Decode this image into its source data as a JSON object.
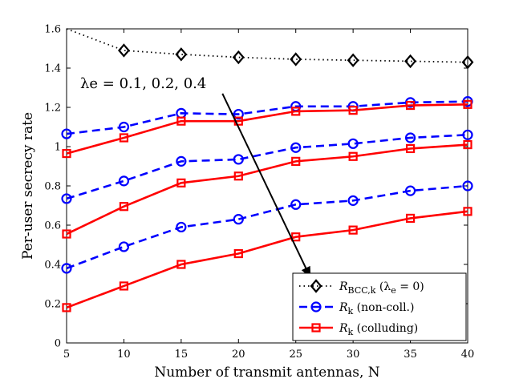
{
  "chart_data": {
    "type": "line",
    "x": [
      5,
      10,
      15,
      20,
      25,
      30,
      35,
      40
    ],
    "xlabel": "Number of transmit antennas, N",
    "ylabel": "Per-user secrecy rate",
    "xlim": [
      5,
      40
    ],
    "ylim": [
      0,
      1.6
    ],
    "x_ticks": [
      5,
      10,
      15,
      20,
      25,
      30,
      35,
      40
    ],
    "y_ticks": [
      0,
      0.2,
      0.4,
      0.6,
      0.8,
      1,
      1.2,
      1.4,
      1.6
    ],
    "y_tick_labels": [
      "0",
      "0.2",
      "0.4",
      "0.6",
      "0.8",
      "1",
      "1.2",
      "1.4",
      "1.6"
    ],
    "grid": false,
    "legend_position": "bottom-right",
    "annotation": {
      "text": "λe = 0.1, 0.2, 0.4",
      "arrow_from": [
        18.6,
        1.27
      ],
      "arrow_to": [
        26.3,
        0.33
      ]
    },
    "series": [
      {
        "name": "R_BCC,k (λe = 0)",
        "legend": "RBCC,k (λe = 0)",
        "style": "dotted",
        "marker": "diamond",
        "color": "#000000",
        "values": [
          1.6,
          1.49,
          1.47,
          1.455,
          1.445,
          1.44,
          1.435,
          1.43
        ]
      },
      {
        "name": "R_k (non-coll.)",
        "legend": "Rk (non-coll.)",
        "style": "dashed",
        "marker": "circle",
        "color": "#0000ff",
        "values": [
          1.065,
          1.1,
          1.17,
          1.165,
          1.205,
          1.205,
          1.225,
          1.23
        ]
      },
      {
        "name": "R_k (colluding)",
        "legend": "Rk (colluding)",
        "style": "solid",
        "marker": "square",
        "color": "#ff0000",
        "values": [
          0.965,
          1.045,
          1.13,
          1.13,
          1.18,
          1.185,
          1.21,
          1.215
        ]
      },
      {
        "name": "R_k (non-coll.) λe=0.2",
        "style": "dashed",
        "marker": "circle",
        "color": "#0000ff",
        "values": [
          0.735,
          0.825,
          0.925,
          0.935,
          0.995,
          1.015,
          1.045,
          1.06
        ]
      },
      {
        "name": "R_k (colluding) λe=0.2",
        "style": "solid",
        "marker": "square",
        "color": "#ff0000",
        "values": [
          0.555,
          0.695,
          0.815,
          0.85,
          0.925,
          0.95,
          0.99,
          1.01
        ]
      },
      {
        "name": "R_k (non-coll.) λe=0.4",
        "style": "dashed",
        "marker": "circle",
        "color": "#0000ff",
        "values": [
          0.38,
          0.49,
          0.59,
          0.63,
          0.705,
          0.725,
          0.775,
          0.8
        ]
      },
      {
        "name": "R_k (colluding) λe=0.4",
        "style": "solid",
        "marker": "square",
        "color": "#ff0000",
        "values": [
          0.18,
          0.29,
          0.4,
          0.455,
          0.54,
          0.575,
          0.635,
          0.67
        ]
      }
    ],
    "legend_entries": [
      {
        "main": "R",
        "sub": "BCC,k",
        "suffix": " (λ",
        "suffix_sub": "e",
        "suffix_end": " = 0)",
        "series_index": 0
      },
      {
        "main": "R",
        "sub": "k",
        "suffix": " (non-coll.)",
        "series_index": 1
      },
      {
        "main": "R",
        "sub": "k",
        "suffix": " (colluding)",
        "series_index": 2
      }
    ]
  }
}
